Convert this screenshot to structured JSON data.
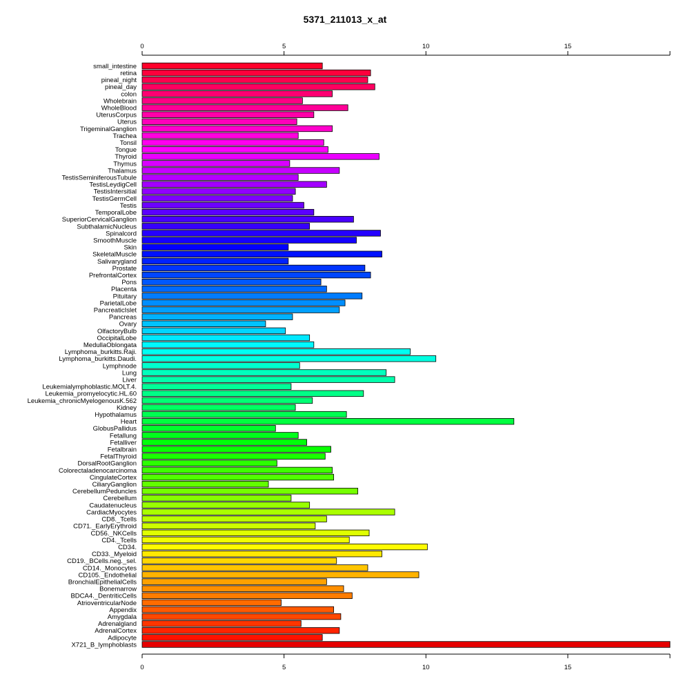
{
  "chart_data": {
    "type": "bar",
    "orientation": "horizontal",
    "title": "5371_211013_x_at",
    "xlabel": "",
    "ylabel": "",
    "xlim": [
      0,
      18.6
    ],
    "xticks": [
      0,
      5,
      10,
      15
    ],
    "axes": [
      "top",
      "bottom"
    ],
    "grid": false,
    "legend": "none",
    "categories": [
      "small_intestine",
      "retina",
      "pineal_night",
      "pineal_day",
      "colon",
      "Wholebrain",
      "WholeBlood",
      "UterusCorpus",
      "Uterus",
      "TrigeminalGanglion",
      "Trachea",
      "Tonsil",
      "Tongue",
      "Thyroid",
      "Thymus",
      "Thalamus",
      "TestisSeminiferousTubule",
      "TestisLeydigCell",
      "TestisIntersitial",
      "TestisGermCell",
      "Testis",
      "TemporalLobe",
      "SuperiorCervicalGanglion",
      "SubthalamicNucleus",
      "Spinalcord",
      "SmoothMuscle",
      "Skin",
      "SkeletalMuscle",
      "Salivarygland",
      "Prostate",
      "PrefrontalCortex",
      "Pons",
      "Placenta",
      "Pituitary",
      "ParietalLobe",
      "PancreaticIslet",
      "Pancreas",
      "Ovary",
      "OlfactoryBulb",
      "OccipitalLobe",
      "MedullaOblongata",
      "Lymphoma_burkitts.Raji.",
      "Lymphoma_burkitts.Daudi.",
      "Lymphnode",
      "Lung",
      "Liver",
      "Leukemialymphoblastic.MOLT.4.",
      "Leukemia_promyelocytic.HL.60",
      "Leukemia_chronicMyelogenousK.562",
      "Kidney",
      "Hypothalamus",
      "Heart",
      "GlobusPallidus",
      "Fetallung",
      "Fetalliver",
      "Fetalbrain",
      "FetalThyroid",
      "DorsalRootGanglion",
      "Colorectaladenocarcinoma",
      "CingulateCortex",
      "CiliaryGanglion",
      "CerebellumPeduncles",
      "Cerebellum",
      "Caudatenucleus",
      "CardiacMyocytes",
      "CD8._Tcells",
      "CD71._EarlyErythroid",
      "CD56._NKCells",
      "CD4._Tcells",
      "CD34.",
      "CD33._Myeloid",
      "CD19._BCells.neg._sel.",
      "CD14._Monocytes",
      "CD105._Endothelial",
      "BronchialEpithelialCells",
      "Bonemarrow",
      "BDCA4._DentriticCells",
      "AtrioventricularNode",
      "Appendix",
      "Amygdala",
      "Adrenalgland",
      "AdrenalCortex",
      "Adipocyte",
      "X721_B_lymphoblasts"
    ],
    "values": [
      6.35,
      8.05,
      7.95,
      8.2,
      6.7,
      5.65,
      7.25,
      6.05,
      5.45,
      6.7,
      5.5,
      6.4,
      6.55,
      8.35,
      5.2,
      6.95,
      5.5,
      6.5,
      5.4,
      5.3,
      5.7,
      6.05,
      7.45,
      5.9,
      8.4,
      7.55,
      5.15,
      8.45,
      5.15,
      7.85,
      8.05,
      6.3,
      6.5,
      7.75,
      7.15,
      6.95,
      5.3,
      4.35,
      5.05,
      5.9,
      6.05,
      9.45,
      10.35,
      5.55,
      8.6,
      8.9,
      5.25,
      7.8,
      6.0,
      5.4,
      7.2,
      13.1,
      4.7,
      5.5,
      5.8,
      6.65,
      6.45,
      4.75,
      6.7,
      6.75,
      4.45,
      7.6,
      5.25,
      5.9,
      8.9,
      6.5,
      6.1,
      8.0,
      7.3,
      10.05,
      8.45,
      6.85,
      7.95,
      9.75,
      6.5,
      7.1,
      7.4,
      4.9,
      6.75,
      7.0,
      5.6,
      6.95,
      6.35,
      18.6
    ]
  }
}
